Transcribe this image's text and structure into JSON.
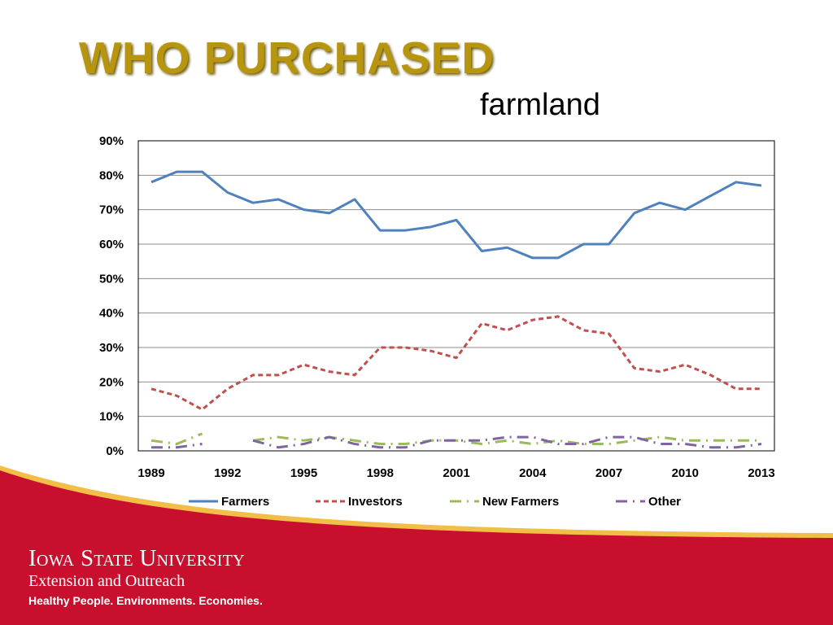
{
  "slide": {
    "title": "WHO PURCHASED",
    "subtitle": "farmland"
  },
  "footer": {
    "university": "Iowa State University",
    "unit": "Extension and Outreach",
    "tagline": "Healthy People. Environments. Economies."
  },
  "colors": {
    "title": "#B8950F",
    "farmers": "#4F81BD",
    "investors": "#C0504D",
    "new_farmers": "#9BBB59",
    "other": "#8064A2",
    "footer_red": "#C8102E",
    "footer_gold": "#F1BE48"
  },
  "chart_data": {
    "type": "line",
    "x": [
      1989,
      1990,
      1991,
      1992,
      1993,
      1994,
      1995,
      1996,
      1997,
      1998,
      1999,
      2000,
      2001,
      2002,
      2003,
      2004,
      2005,
      2006,
      2007,
      2008,
      2009,
      2010,
      2011,
      2012,
      2013
    ],
    "x_tick_labels": [
      "1989",
      "1992",
      "1995",
      "1998",
      "2001",
      "2004",
      "2007",
      "2010",
      "2013"
    ],
    "y_tick_labels": [
      "0%",
      "10%",
      "20%",
      "30%",
      "40%",
      "50%",
      "60%",
      "70%",
      "80%",
      "90%"
    ],
    "ylim": [
      0,
      90
    ],
    "grid": "horizontal",
    "legend_position": "bottom",
    "series": [
      {
        "name": "Farmers",
        "style": "solid",
        "values": [
          78,
          81,
          81,
          75,
          72,
          73,
          70,
          69,
          73,
          64,
          64,
          65,
          67,
          58,
          59,
          56,
          56,
          60,
          60,
          69,
          72,
          70,
          74,
          78,
          77
        ]
      },
      {
        "name": "Investors",
        "style": "dashed",
        "values": [
          18,
          16,
          12,
          18,
          22,
          22,
          25,
          23,
          22,
          30,
          30,
          29,
          27,
          37,
          35,
          38,
          39,
          35,
          34,
          24,
          23,
          25,
          22,
          18,
          18
        ]
      },
      {
        "name": "New Farmers",
        "style": "long-dash-dot",
        "values": [
          3,
          2,
          5,
          null,
          3,
          4,
          3,
          4,
          3,
          2,
          2,
          3,
          3,
          2,
          3,
          2,
          3,
          2,
          2,
          3,
          4,
          3,
          3,
          3,
          3
        ]
      },
      {
        "name": "Other",
        "style": "long-dash-dot",
        "values": [
          1,
          1,
          2,
          null,
          3,
          1,
          2,
          4,
          2,
          1,
          1,
          3,
          3,
          3,
          4,
          4,
          2,
          2,
          4,
          4,
          2,
          2,
          1,
          1,
          2
        ]
      }
    ]
  }
}
